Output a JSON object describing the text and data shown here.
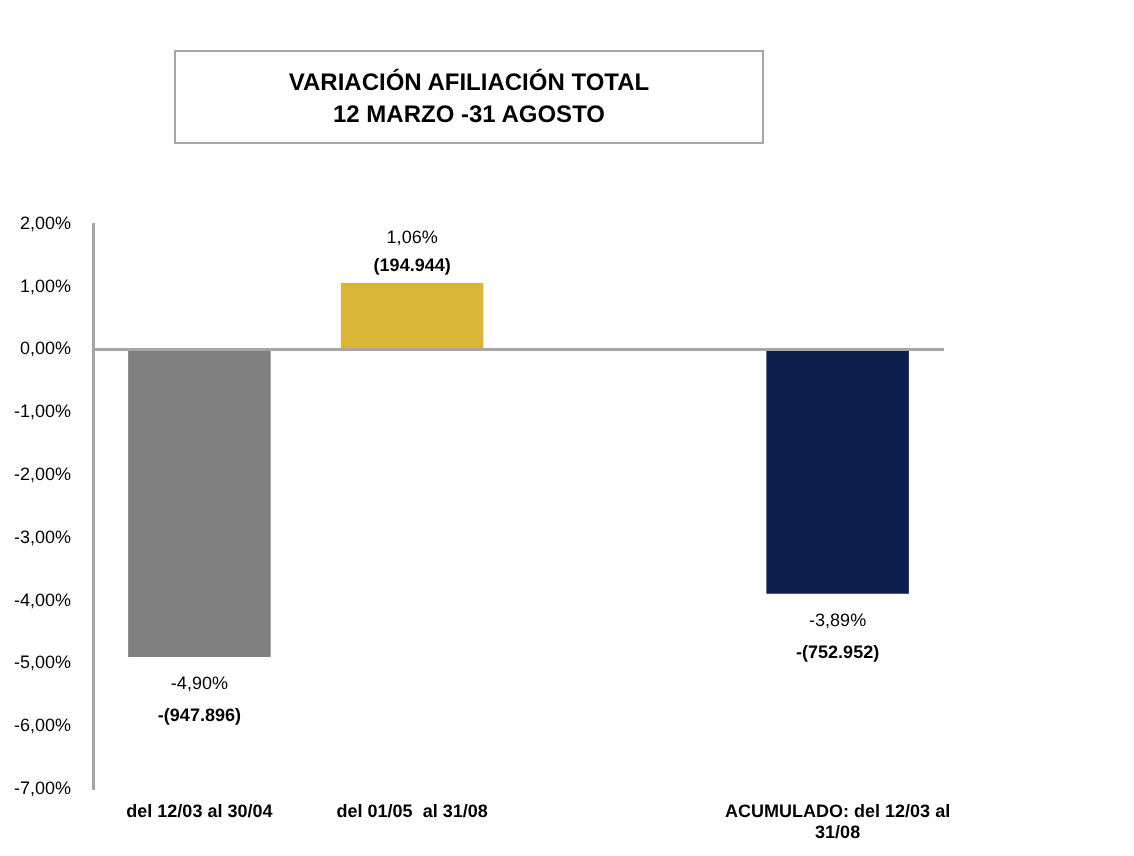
{
  "chart_data": {
    "type": "bar",
    "title": "VARIACIÓN AFILIACIÓN TOTAL\n12 MARZO -31 AGOSTO",
    "categories": [
      "del 12/03 al 30/04",
      "del 01/05  al 31/08",
      null,
      "ACUMULADO: del 12/03 al 31/08"
    ],
    "values": [
      -4.9,
      1.06,
      null,
      -3.89
    ],
    "colors": [
      "#808080",
      "#dbb535",
      "#ffffff",
      "#0d1f4f"
    ],
    "value_labels": [
      "-4,90%",
      "1,06%",
      null,
      "-3,89%"
    ],
    "annotations": [
      {
        "text": "-(947.896)",
        "x": "del 12/03 al 30/04",
        "y": -4.9
      },
      {
        "text": "(194.944)",
        "x": "del 01/05  al 31/08",
        "y": 1.06
      },
      {
        "text": "-(752.952)",
        "x": "ACUMULADO: del 12/03 al 31/08",
        "y": -3.89
      }
    ],
    "ylim": [
      -7,
      2
    ],
    "yticks": [
      {
        "value": 2,
        "label": "2,00%"
      },
      {
        "value": 1,
        "label": "1,00%"
      },
      {
        "value": 0,
        "label": "0,00%"
      },
      {
        "value": -1,
        "label": "-1,00%"
      },
      {
        "value": -2,
        "label": "-2,00%"
      },
      {
        "value": -3,
        "label": "-3,00%"
      },
      {
        "value": -4,
        "label": "-4,00%"
      },
      {
        "value": -5,
        "label": "-5,00%"
      },
      {
        "value": -6,
        "label": "-6,00%"
      },
      {
        "value": -7,
        "label": "-7,00%"
      }
    ],
    "ref_lines": [
      {
        "axis": "y",
        "value": 0,
        "color": "#a6a6a6"
      }
    ],
    "grid": false,
    "legend": false
  }
}
